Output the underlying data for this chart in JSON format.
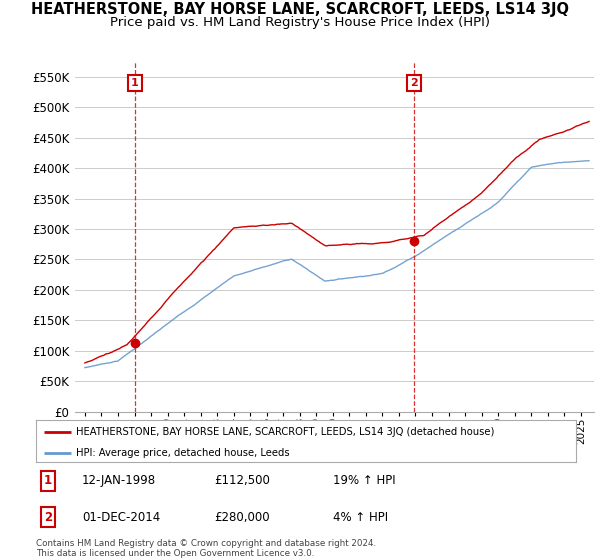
{
  "title": "HEATHERSTONE, BAY HORSE LANE, SCARCROFT, LEEDS, LS14 3JQ",
  "subtitle": "Price paid vs. HM Land Registry's House Price Index (HPI)",
  "ylim": [
    0,
    575000
  ],
  "yticks": [
    0,
    50000,
    100000,
    150000,
    200000,
    250000,
    300000,
    350000,
    400000,
    450000,
    500000,
    550000
  ],
  "ytick_labels": [
    "£0",
    "£50K",
    "£100K",
    "£150K",
    "£200K",
    "£250K",
    "£300K",
    "£350K",
    "£400K",
    "£450K",
    "£500K",
    "£550K"
  ],
  "legend_line1": "HEATHERSTONE, BAY HORSE LANE, SCARCROFT, LEEDS, LS14 3JQ (detached house)",
  "legend_line2": "HPI: Average price, detached house, Leeds",
  "sale1_date": "12-JAN-1998",
  "sale1_price": 112500,
  "sale1_pct": "19% ↑ HPI",
  "sale2_date": "01-DEC-2014",
  "sale2_price": 280000,
  "sale2_pct": "4% ↑ HPI",
  "footnote": "Contains HM Land Registry data © Crown copyright and database right 2024.\nThis data is licensed under the Open Government Licence v3.0.",
  "line_color_red": "#cc0000",
  "line_color_blue": "#6699cc",
  "background_color": "#ffffff",
  "grid_color": "#cccccc",
  "title_fontsize": 10.5,
  "subtitle_fontsize": 9.5,
  "sale1_x": 1998.03,
  "sale2_x": 2014.92
}
